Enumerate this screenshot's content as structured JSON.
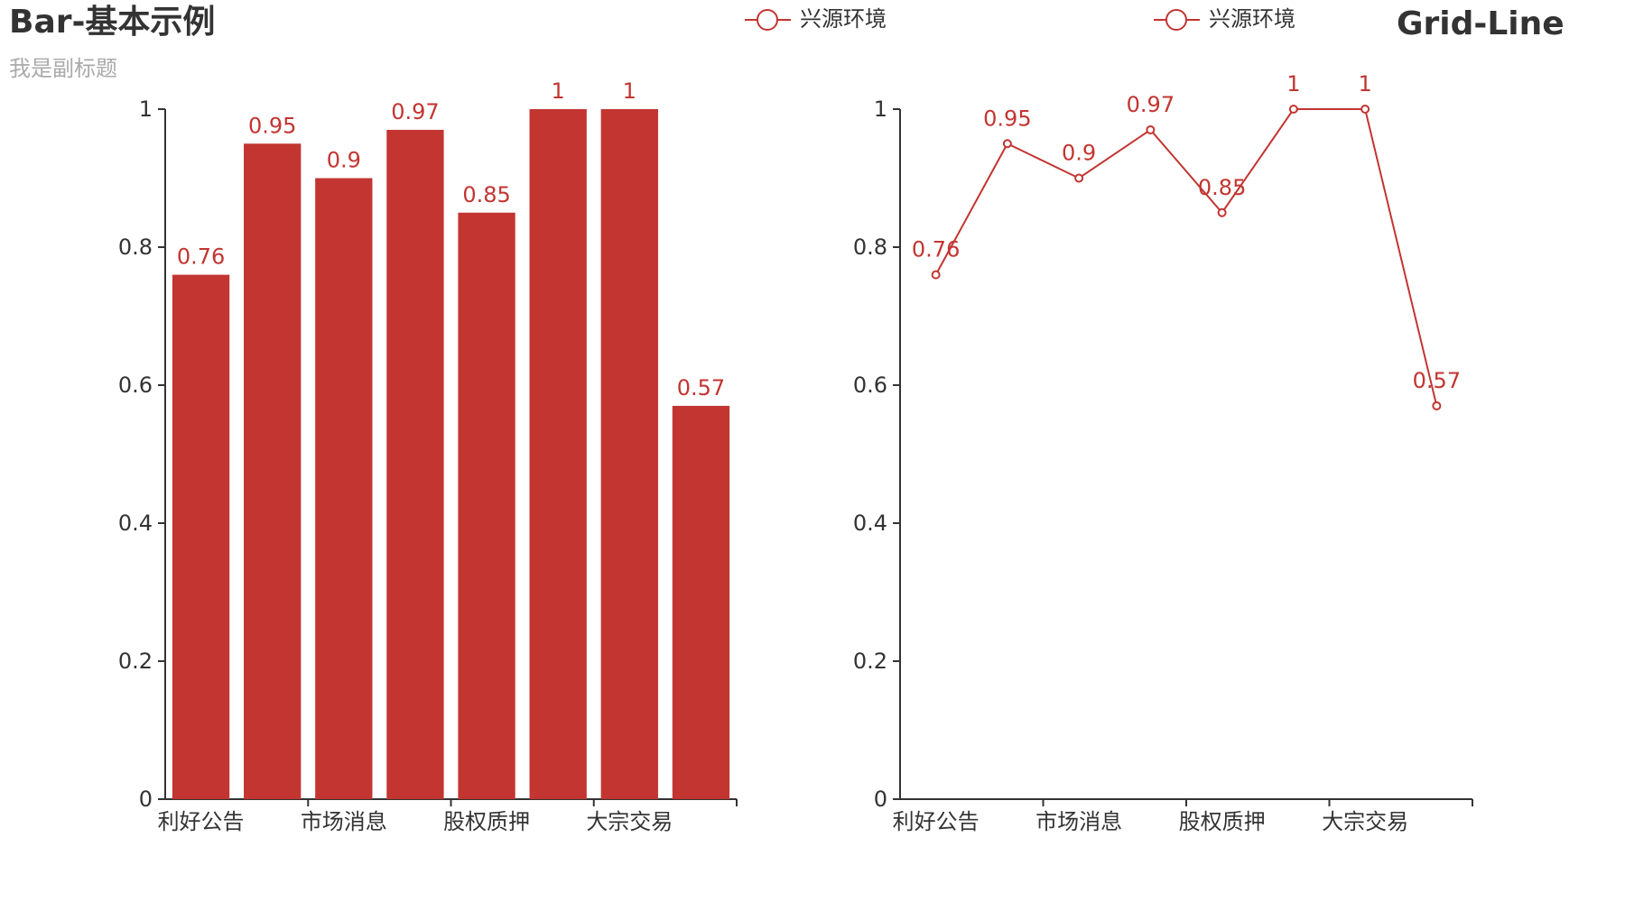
{
  "titles": {
    "left_title": "Bar-基本示例",
    "left_subtitle": "我是副标题",
    "right_title": "Grid-Line"
  },
  "legend": {
    "left_label": "兴源环境",
    "right_label": "兴源环境"
  },
  "colors": {
    "series": "#c23531",
    "axis": "#333333",
    "subtitle": "#aaaaaa"
  },
  "chart_data": [
    {
      "type": "bar",
      "title": "Bar-基本示例",
      "subtitle": "我是副标题",
      "categories": [
        "利好公告",
        "",
        "市场消息",
        "",
        "股权质押",
        "",
        "大宗交易",
        ""
      ],
      "x_tick_labels": [
        "利好公告",
        "市场消息",
        "股权质押",
        "大宗交易"
      ],
      "series": [
        {
          "name": "兴源环境",
          "values": [
            0.76,
            0.95,
            0.9,
            0.97,
            0.85,
            1,
            1,
            0.57
          ]
        }
      ],
      "ylim": [
        0,
        1
      ],
      "yticks": [
        0,
        0.2,
        0.4,
        0.6,
        0.8,
        1
      ],
      "legend": "top-center",
      "grid": false
    },
    {
      "type": "line",
      "title": "Grid-Line",
      "categories": [
        "利好公告",
        "",
        "市场消息",
        "",
        "股权质押",
        "",
        "大宗交易",
        ""
      ],
      "x_tick_labels": [
        "利好公告",
        "市场消息",
        "股权质押",
        "大宗交易"
      ],
      "series": [
        {
          "name": "兴源环境",
          "values": [
            0.76,
            0.95,
            0.9,
            0.97,
            0.85,
            1,
            1,
            0.57
          ]
        }
      ],
      "ylim": [
        0,
        1
      ],
      "yticks": [
        0,
        0.2,
        0.4,
        0.6,
        0.8,
        1
      ],
      "legend": "top-center",
      "grid": false
    }
  ]
}
